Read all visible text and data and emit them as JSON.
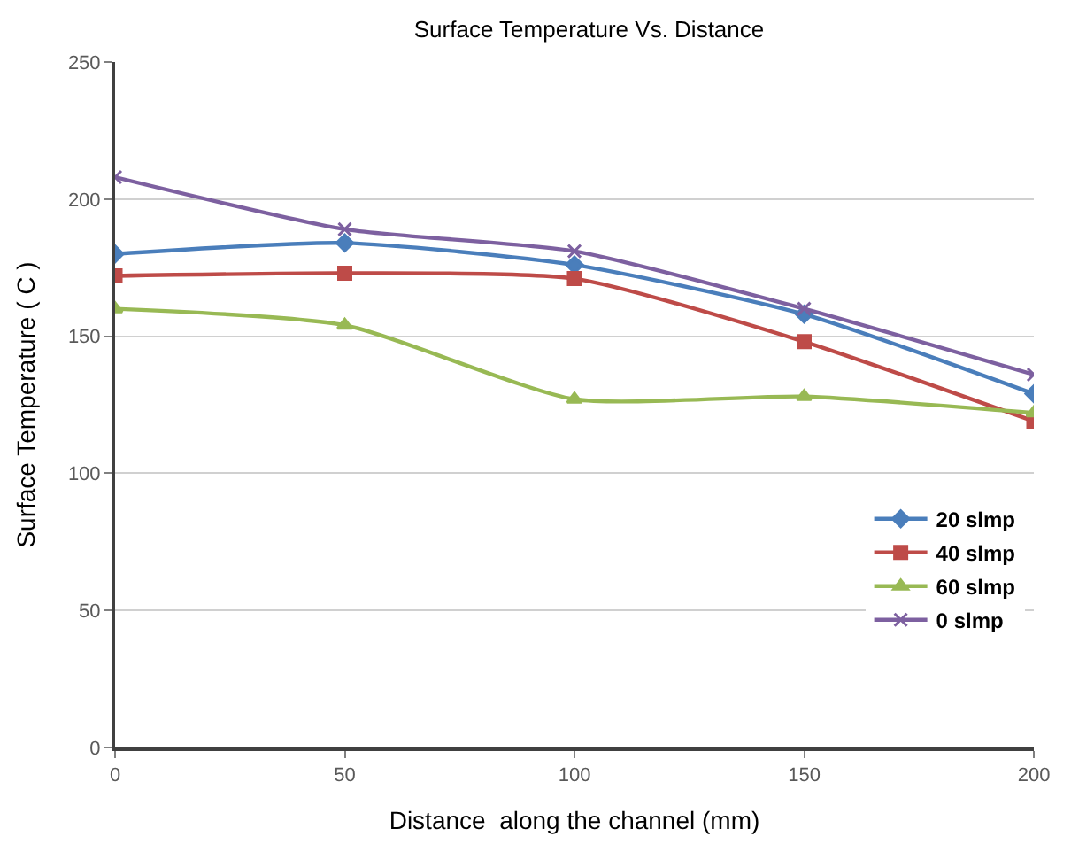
{
  "chart_data": {
    "type": "line",
    "title": "Surface Temperature Vs. Distance",
    "xlabel": "Distance  along the channel (mm)",
    "ylabel": "Surface Temperature ( C )",
    "x": [
      0,
      50,
      100,
      150,
      200
    ],
    "series": [
      {
        "name": "20 slmp",
        "color": "#4a7ebb",
        "marker": "diamond",
        "values": [
          180,
          184,
          176,
          158,
          129
        ]
      },
      {
        "name": "40 slmp",
        "color": "#be4b48",
        "marker": "square",
        "values": [
          172,
          173,
          171,
          148,
          119
        ]
      },
      {
        "name": "60 slmp",
        "color": "#98b954",
        "marker": "triangle",
        "values": [
          160,
          154,
          127,
          128,
          122
        ]
      },
      {
        "name": "0 slmp",
        "color": "#7d60a0",
        "marker": "cross",
        "values": [
          208,
          189,
          181,
          160,
          136
        ]
      }
    ],
    "xlim": [
      0,
      200
    ],
    "xticks": [
      0,
      50,
      100,
      150,
      200
    ],
    "ylim": [
      0,
      250
    ],
    "yticks": [
      0,
      50,
      100,
      150,
      200,
      250
    ],
    "grid": "y",
    "legend": "right",
    "line_style": "solid"
  }
}
